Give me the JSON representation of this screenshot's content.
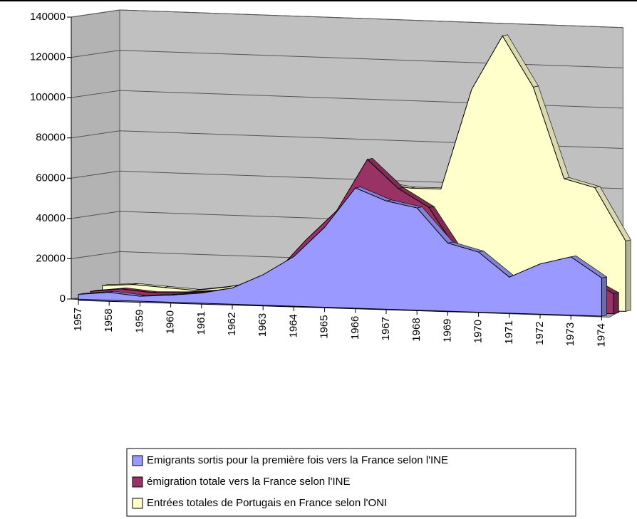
{
  "chart_data": {
    "type": "area3d",
    "categories": [
      "1957",
      "1958",
      "1959",
      "1960",
      "1961",
      "1962",
      "1963",
      "1964",
      "1965",
      "1966",
      "1967",
      "1968",
      "1969",
      "1970",
      "1971",
      "1972",
      "1973",
      "1974"
    ],
    "series": [
      {
        "name": "Emigrants sortis pour la première fois vers la France selon l'INE",
        "color": "#9999ff",
        "values": [
          3000,
          4500,
          3000,
          4000,
          5500,
          8500,
          15500,
          25000,
          40000,
          60000,
          54000,
          51000,
          34000,
          30000,
          18000,
          25000,
          29000,
          19000
        ]
      },
      {
        "name": "émigration totale vers la France selon l'INE",
        "color": "#993366",
        "values": [
          3300,
          5000,
          3600,
          4000,
          5400,
          8200,
          15000,
          32000,
          47000,
          73000,
          59000,
          50000,
          27000,
          22000,
          10000,
          16000,
          18000,
          10000
        ]
      },
      {
        "name": "Entrées totales de Portugais en France selon l'ONI",
        "color": "#ffffcc",
        "values": [
          5000,
          6000,
          5000,
          4000,
          6000,
          9000,
          14000,
          28000,
          48000,
          60000,
          58000,
          58000,
          108000,
          135000,
          110000,
          65000,
          61000,
          35000
        ]
      }
    ],
    "ylim": [
      0,
      140000
    ],
    "yticks": [
      0,
      20000,
      40000,
      60000,
      80000,
      100000,
      120000,
      140000
    ],
    "grid": true
  }
}
